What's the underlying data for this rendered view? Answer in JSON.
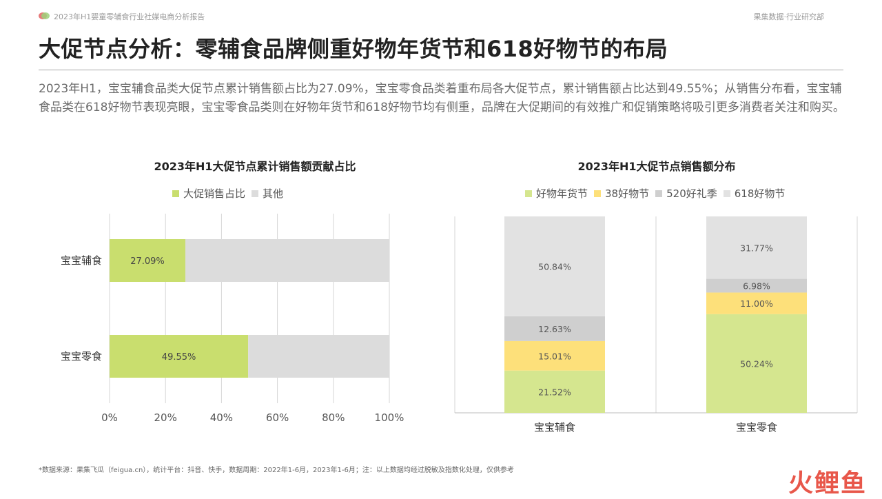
{
  "header": {
    "report_title": "2023年H1婴童零辅食行业社媒电商分析报告",
    "brand": "果集数据·行业研究部"
  },
  "page_title": "大促节点分析：零辅食品牌侧重好物年货节和618好物节的布局",
  "summary": "2023年H1，宝宝辅食品类大促节点累计销售额占比为27.09%，宝宝零食品类着重布局各大促节点，累计销售额占比达到49.55%；从销售分布看，宝宝辅食品类在618好物节表现亮眼，宝宝零食品类则在好物年货节和618好物节均有侧重，品牌在大促期间的有效推广和促销策略将吸引更多消费者关注和购买。",
  "chart_data": [
    {
      "type": "bar",
      "orientation": "horizontal",
      "stacked": true,
      "title": "2023年H1大促节点累计销售额贡献占比",
      "categories": [
        "宝宝辅食",
        "宝宝零食"
      ],
      "series": [
        {
          "name": "大促销售占比",
          "values": [
            27.09,
            49.55
          ],
          "color": "#c9de6e",
          "labels": [
            "27.09%",
            "49.55%"
          ]
        },
        {
          "name": "其他",
          "values": [
            72.91,
            50.45
          ],
          "color": "#dcdcdc"
        }
      ],
      "xlim": [
        0,
        100
      ],
      "xticks": [
        "0%",
        "20%",
        "40%",
        "60%",
        "80%",
        "100%"
      ],
      "grid": true,
      "legend": "top"
    },
    {
      "type": "bar",
      "orientation": "vertical",
      "stacked": true,
      "title": "2023年H1大促节点销售额分布",
      "categories": [
        "宝宝辅食",
        "宝宝零食"
      ],
      "series": [
        {
          "name": "好物年货节",
          "values": [
            21.52,
            50.24
          ],
          "color": "#d5e68f",
          "labels": [
            "21.52%",
            "50.24%"
          ]
        },
        {
          "name": "38好物节",
          "values": [
            15.01,
            11.0
          ],
          "color": "#fde07a",
          "labels": [
            "15.01%",
            "11.00%"
          ]
        },
        {
          "name": "520好礼季",
          "values": [
            12.63,
            6.98
          ],
          "color": "#cfcfcf",
          "labels": [
            "12.63%",
            "6.98%"
          ]
        },
        {
          "name": "618好物节",
          "values": [
            50.84,
            31.77
          ],
          "color": "#e2e2e2",
          "labels": [
            "50.84%",
            "31.77%"
          ]
        }
      ],
      "ylim": [
        0,
        100
      ],
      "legend": "top"
    }
  ],
  "footnote": "*数据来源：果集飞瓜（feigua.cn），统计平台：抖音、快手，数据周期：2022年1-6月，2023年1-6月；注：以上数据均经过脱敏及指数化处理，仅供参考",
  "watermark": "火鲤鱼"
}
